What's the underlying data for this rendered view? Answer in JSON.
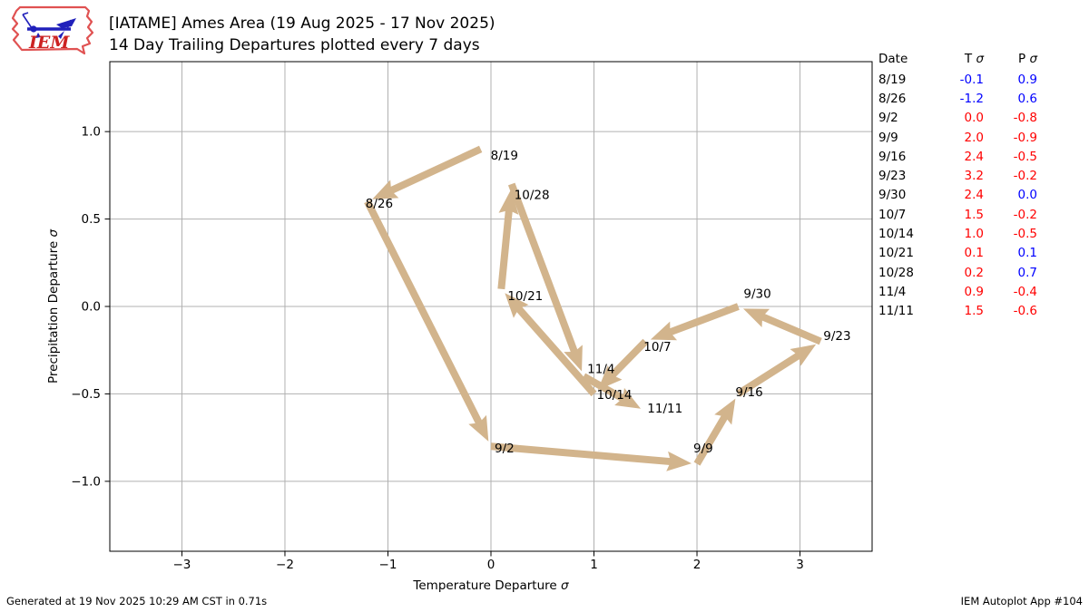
{
  "logo": {
    "text": "IEM"
  },
  "header": {
    "title": "[IATAME] Ames Area (19 Aug 2025 - 17 Nov 2025)",
    "subtitle": "14 Day Trailing Departures plotted every 7 days"
  },
  "footer": {
    "generated": "Generated at 19 Nov 2025 10:29 AM CST in 0.71s",
    "app": "IEM Autoplot App #104"
  },
  "side_table": {
    "headers": [
      "Date",
      "T σ",
      "P σ"
    ],
    "value_colors": {
      "warm": "#ff0000",
      "cold": "#0000ff",
      "wet": "#0000ff",
      "dry": "#ff0000"
    },
    "rows": [
      {
        "date": "8/19",
        "t": "-0.1",
        "p": "0.9",
        "t_color": "#0000ff",
        "p_color": "#0000ff"
      },
      {
        "date": "8/26",
        "t": "-1.2",
        "p": "0.6",
        "t_color": "#0000ff",
        "p_color": "#0000ff"
      },
      {
        "date": "9/2",
        "t": "0.0",
        "p": "-0.8",
        "t_color": "#ff0000",
        "p_color": "#ff0000"
      },
      {
        "date": "9/9",
        "t": "2.0",
        "p": "-0.9",
        "t_color": "#ff0000",
        "p_color": "#ff0000"
      },
      {
        "date": "9/16",
        "t": "2.4",
        "p": "-0.5",
        "t_color": "#ff0000",
        "p_color": "#ff0000"
      },
      {
        "date": "9/23",
        "t": "3.2",
        "p": "-0.2",
        "t_color": "#ff0000",
        "p_color": "#ff0000"
      },
      {
        "date": "9/30",
        "t": "2.4",
        "p": "0.0",
        "t_color": "#ff0000",
        "p_color": "#0000ff"
      },
      {
        "date": "10/7",
        "t": "1.5",
        "p": "-0.2",
        "t_color": "#ff0000",
        "p_color": "#ff0000"
      },
      {
        "date": "10/14",
        "t": "1.0",
        "p": "-0.5",
        "t_color": "#ff0000",
        "p_color": "#ff0000"
      },
      {
        "date": "10/21",
        "t": "0.1",
        "p": "0.1",
        "t_color": "#ff0000",
        "p_color": "#0000ff"
      },
      {
        "date": "10/28",
        "t": "0.2",
        "p": "0.7",
        "t_color": "#ff0000",
        "p_color": "#0000ff"
      },
      {
        "date": "11/4",
        "t": "0.9",
        "p": "-0.4",
        "t_color": "#ff0000",
        "p_color": "#ff0000"
      },
      {
        "date": "11/11",
        "t": "1.5",
        "p": "-0.6",
        "t_color": "#ff0000",
        "p_color": "#ff0000"
      }
    ]
  },
  "chart_data": {
    "type": "scatter",
    "title": "[IATAME] Ames Area (19 Aug 2025 - 17 Nov 2025)",
    "subtitle": "14 Day Trailing Departures plotted every 7 days",
    "xlabel": "Temperature Departure σ",
    "ylabel": "Precipitation Departure σ",
    "xlim": [
      -3.7,
      3.7
    ],
    "ylim": [
      -1.4,
      1.4
    ],
    "x_ticks": [
      -3,
      -2,
      -1,
      0,
      1,
      2,
      3
    ],
    "y_ticks": [
      -1.0,
      -0.5,
      0.0,
      0.5,
      1.0
    ],
    "grid": true,
    "legend": "none",
    "arrow_color": "#d2b48c",
    "trajectory": [
      {
        "label": "8/19",
        "x": -0.1,
        "y": 0.9,
        "label_offset": [
          11,
          7
        ]
      },
      {
        "label": "8/26",
        "x": -1.2,
        "y": 0.6,
        "label_offset": [
          -2,
          2
        ]
      },
      {
        "label": "9/2",
        "x": 0.0,
        "y": -0.8,
        "label_offset": [
          4,
          2
        ]
      },
      {
        "label": "9/9",
        "x": 2.0,
        "y": -0.9,
        "label_offset": [
          -4,
          -17
        ]
      },
      {
        "label": "9/16",
        "x": 2.4,
        "y": -0.5,
        "label_offset": [
          -3,
          -2
        ]
      },
      {
        "label": "9/23",
        "x": 3.2,
        "y": -0.2,
        "label_offset": [
          3,
          -6
        ]
      },
      {
        "label": "9/30",
        "x": 2.4,
        "y": 0.0,
        "label_offset": [
          6,
          -14
        ]
      },
      {
        "label": "10/7",
        "x": 1.5,
        "y": -0.2,
        "label_offset": [
          -2,
          6
        ]
      },
      {
        "label": "10/14",
        "x": 1.0,
        "y": -0.5,
        "label_offset": [
          3,
          1
        ]
      },
      {
        "label": "10/21",
        "x": 0.1,
        "y": 0.1,
        "label_offset": [
          7,
          8
        ]
      },
      {
        "label": "10/28",
        "x": 0.2,
        "y": 0.7,
        "label_offset": [
          3,
          12
        ]
      },
      {
        "label": "11/4",
        "x": 0.9,
        "y": -0.4,
        "label_offset": [
          4,
          -8
        ]
      },
      {
        "label": "11/11",
        "x": 1.5,
        "y": -0.6,
        "label_offset": [
          2,
          -3
        ]
      }
    ]
  }
}
